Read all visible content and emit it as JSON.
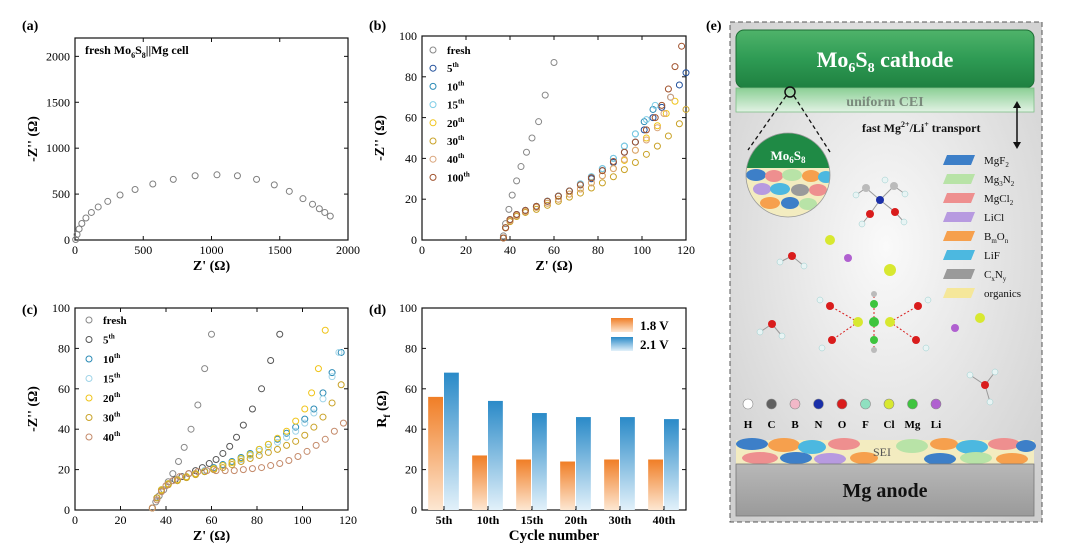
{
  "figure": {
    "panel_labels": [
      "(a)",
      "(b)",
      "(c)",
      "(d)",
      "(e)"
    ]
  },
  "chart_data": [
    {
      "id": "a",
      "type": "scatter",
      "title": "",
      "annotation": {
        "main": "fresh Mo",
        "sub1": "6",
        "mid": "S",
        "sub2": "8",
        "tail": "||Mg cell"
      },
      "xlabel": "Z' (Ω)",
      "ylabel": "-Z'' (Ω)",
      "xlim": [
        0,
        2000
      ],
      "ylim": [
        0,
        2200
      ],
      "xticks": [
        0,
        500,
        1000,
        1500,
        2000
      ],
      "yticks": [
        0,
        500,
        1000,
        1500,
        2000
      ],
      "marker_color": "#7f7f7f",
      "series": [
        {
          "name": "fresh",
          "x": [
            5,
            15,
            30,
            50,
            80,
            120,
            170,
            240,
            330,
            440,
            570,
            720,
            880,
            1040,
            1190,
            1330,
            1460,
            1570,
            1670,
            1740,
            1790,
            1830,
            1870
          ],
          "y": [
            5,
            60,
            120,
            180,
            240,
            300,
            360,
            420,
            490,
            550,
            610,
            660,
            700,
            710,
            700,
            660,
            600,
            530,
            450,
            390,
            340,
            300,
            260
          ]
        }
      ]
    },
    {
      "id": "b",
      "type": "scatter",
      "xlabel": "Z' (Ω)",
      "ylabel": "-Z'' (Ω)",
      "xlim": [
        0,
        120
      ],
      "ylim": [
        0,
        100
      ],
      "xticks": [
        0,
        20,
        40,
        60,
        80,
        100,
        120
      ],
      "yticks": [
        0,
        20,
        40,
        60,
        80,
        100
      ],
      "series": [
        {
          "name": "fresh",
          "sup": "",
          "color": "#888888",
          "x": [
            37,
            38,
            39.5,
            41,
            43,
            45,
            47.5,
            50,
            53,
            56,
            60
          ],
          "y": [
            2,
            8,
            15,
            22,
            29,
            36,
            43,
            50,
            58,
            71,
            87
          ]
        },
        {
          "name": "5",
          "sup": "th",
          "color": "#1f4e9a",
          "x": [
            37,
            38,
            40,
            43,
            47,
            52,
            57,
            62,
            67,
            72,
            77,
            82,
            87,
            92,
            97,
            101,
            105,
            109,
            113,
            117,
            120
          ],
          "y": [
            1,
            6,
            10,
            12.5,
            14.5,
            16.5,
            19,
            21.5,
            24,
            27,
            30,
            34,
            38,
            43,
            48,
            54,
            60,
            65,
            70,
            76,
            82
          ]
        },
        {
          "name": "10",
          "sup": "th",
          "color": "#2a8ab5",
          "x": [
            37,
            38,
            40,
            43,
            47,
            52,
            57,
            62,
            67,
            72,
            77,
            82,
            87,
            92,
            97,
            101,
            105
          ],
          "y": [
            1,
            6,
            10,
            12.5,
            14.5,
            16.5,
            19,
            21.5,
            24,
            27.5,
            31,
            35,
            40,
            46,
            52,
            58,
            64
          ]
        },
        {
          "name": "15",
          "sup": "th",
          "color": "#7fcde6",
          "x": [
            37,
            38,
            40,
            43,
            47,
            52,
            57,
            62,
            67,
            72,
            77,
            82,
            87,
            92,
            97,
            102,
            106
          ],
          "y": [
            1,
            6,
            10,
            12.5,
            14.5,
            16.5,
            19,
            21.5,
            24,
            27.5,
            31,
            35,
            40,
            46,
            52,
            59,
            66
          ]
        },
        {
          "name": "20",
          "sup": "th",
          "color": "#f0c419",
          "x": [
            37,
            38,
            40,
            43,
            47,
            52,
            57,
            62,
            67,
            72,
            77,
            82,
            87,
            92,
            97,
            102,
            107,
            111,
            115
          ],
          "y": [
            1,
            6,
            9.5,
            12,
            14,
            16,
            18,
            20,
            22.5,
            25,
            28,
            31.5,
            35,
            39,
            44,
            50,
            56,
            62,
            68
          ]
        },
        {
          "name": "30",
          "sup": "th",
          "color": "#c9a227",
          "x": [
            37,
            38,
            40,
            43,
            47,
            52,
            57,
            62,
            67,
            72,
            77,
            82,
            87,
            92,
            97,
            102,
            107,
            112,
            117,
            120
          ],
          "y": [
            1,
            6,
            9,
            11.5,
            13.5,
            15,
            17,
            19,
            21,
            23,
            25.5,
            28,
            31,
            34.5,
            38,
            42,
            46,
            51,
            57,
            64
          ]
        },
        {
          "name": "40",
          "sup": "th",
          "color": "#d9a47a",
          "x": [
            37,
            38,
            40,
            43,
            47,
            52,
            57,
            62,
            67,
            72,
            77,
            82,
            87,
            92,
            97,
            102,
            107,
            110,
            113
          ],
          "y": [
            1,
            6,
            9.5,
            12,
            14,
            16,
            18,
            20,
            22.5,
            25,
            28,
            31.5,
            35,
            39.5,
            44,
            49,
            55,
            62,
            70
          ]
        },
        {
          "name": "100",
          "sup": "th",
          "color": "#a0522d",
          "x": [
            37,
            38,
            40,
            43,
            47,
            52,
            57,
            62,
            67,
            72,
            77,
            82,
            87,
            92,
            97,
            102,
            106,
            109,
            112,
            115,
            118
          ],
          "y": [
            1,
            6,
            10,
            12.5,
            14.5,
            16.5,
            19,
            21.5,
            24,
            27,
            30.5,
            34,
            38.5,
            43,
            48,
            54,
            60,
            66,
            74,
            85,
            95
          ]
        }
      ]
    },
    {
      "id": "c",
      "type": "scatter",
      "xlabel": "Z' (Ω)",
      "ylabel": "-Z'' (Ω)",
      "xlim": [
        0,
        120
      ],
      "ylim": [
        0,
        100
      ],
      "xticks": [
        0,
        20,
        40,
        60,
        80,
        100,
        120
      ],
      "yticks": [
        0,
        20,
        40,
        60,
        80,
        100
      ],
      "series": [
        {
          "name": "fresh",
          "sup": "",
          "color": "#888888",
          "x": [
            34,
            35.5,
            37,
            39,
            41,
            43,
            45.5,
            48,
            51,
            54,
            57,
            60
          ],
          "y": [
            1,
            4,
            7,
            10,
            14,
            18,
            24,
            31,
            40,
            52,
            70,
            87
          ]
        },
        {
          "name": "5",
          "sup": "th",
          "color": "#555555",
          "x": [
            34,
            36,
            38,
            41,
            44,
            47,
            50,
            53,
            56,
            59,
            62,
            65,
            68,
            71,
            74,
            78,
            82,
            86,
            90
          ],
          "y": [
            1,
            6,
            10,
            13,
            15,
            16.5,
            18,
            19.5,
            21,
            23,
            25,
            28,
            31.5,
            36,
            42,
            50,
            60,
            74,
            87
          ]
        },
        {
          "name": "10",
          "sup": "th",
          "color": "#2a8ab5",
          "x": [
            34,
            36,
            38,
            41,
            45,
            49,
            53,
            57,
            61,
            65,
            69,
            73,
            77,
            81,
            85,
            89,
            93,
            97,
            101,
            105,
            109,
            113,
            117
          ],
          "y": [
            1,
            6,
            10,
            13,
            15,
            16.5,
            18,
            19.5,
            21,
            22.5,
            24,
            26,
            28,
            30,
            32.5,
            35,
            38,
            41,
            45,
            50,
            58,
            68,
            78
          ]
        },
        {
          "name": "15",
          "sup": "th",
          "color": "#9fd4e8",
          "x": [
            34,
            36,
            38,
            41,
            45,
            49,
            53,
            57,
            61,
            65,
            69,
            73,
            77,
            81,
            85,
            89,
            93,
            97,
            101,
            105,
            109,
            113,
            116
          ],
          "y": [
            1,
            6,
            10,
            13,
            15,
            16.5,
            18,
            19.5,
            20.5,
            22,
            23.5,
            25,
            27,
            29,
            31,
            33.5,
            36,
            39,
            43,
            48,
            55,
            66,
            78
          ]
        },
        {
          "name": "20",
          "sup": "th",
          "color": "#f0c419",
          "x": [
            34,
            36,
            38,
            41,
            45,
            49,
            53,
            57,
            61,
            65,
            69,
            73,
            77,
            81,
            85,
            89,
            93,
            97,
            101,
            104,
            107,
            110
          ],
          "y": [
            1,
            6,
            10,
            13,
            15,
            16.5,
            18,
            19,
            20.5,
            22,
            23.5,
            25.5,
            27.5,
            30,
            32.5,
            35.5,
            39,
            44,
            50,
            58,
            70,
            89
          ]
        },
        {
          "name": "30",
          "sup": "th",
          "color": "#c9a227",
          "x": [
            34,
            36,
            38,
            41,
            45,
            49,
            53,
            57,
            61,
            65,
            69,
            73,
            77,
            81,
            85,
            89,
            93,
            97,
            101,
            105,
            109,
            113,
            117
          ],
          "y": [
            1,
            6,
            9.5,
            12.5,
            14.5,
            16,
            17.5,
            19,
            20,
            21,
            22.5,
            24,
            25.5,
            27,
            28.5,
            30,
            32,
            34,
            37,
            41,
            46,
            53,
            62
          ]
        },
        {
          "name": "40",
          "sup": "th",
          "color": "#c48a6a",
          "x": [
            34,
            36,
            38,
            40,
            43,
            46,
            50,
            54,
            58,
            62,
            66,
            70,
            74,
            78,
            82,
            86,
            90,
            94,
            98,
            102,
            106,
            110,
            114,
            118
          ],
          "y": [
            1,
            5,
            9,
            12,
            14.5,
            16.5,
            18,
            19,
            19.5,
            19.5,
            19.5,
            19.5,
            20,
            20.5,
            21,
            22,
            23,
            24.5,
            26.5,
            29,
            32,
            35,
            39,
            43
          ]
        }
      ]
    },
    {
      "id": "d",
      "type": "bar",
      "xlabel": "Cycle number",
      "ylabel_main": "R",
      "ylabel_sub": "f",
      "ylabel_tail": " (Ω)",
      "ylim": [
        0,
        100
      ],
      "yticks": [
        0,
        20,
        40,
        60,
        80,
        100
      ],
      "categories": [
        "5th",
        "10th",
        "15th",
        "20th",
        "30th",
        "40th"
      ],
      "series": [
        {
          "name": "1.8 V",
          "color": "#f07e26",
          "values": [
            56,
            27,
            25,
            24,
            25,
            25
          ]
        },
        {
          "name": "2.1 V",
          "color": "#2a8ac8",
          "values": [
            68,
            54,
            48,
            46,
            46,
            45
          ]
        }
      ]
    }
  ],
  "schematic": {
    "cathode": {
      "main": "Mo",
      "sub1": "6",
      "mid": "S",
      "sub2": "8",
      "tail": " cathode"
    },
    "cei_label": "uniform CEI",
    "transport": {
      "pre": "fast Mg",
      "sup": "2+",
      "post": "/Li",
      "sup2": "+",
      "tail": " transport"
    },
    "zoom_circle": {
      "main": "Mo",
      "sub1": "6",
      "mid": "S",
      "sub2": "8"
    },
    "legend": [
      {
        "main": "MgF",
        "sub": "2",
        "color": "#3d7fc8"
      },
      {
        "main": "Mg",
        "sub": "3",
        "mid": "N",
        "sub2": "2",
        "color": "#b8e3a7"
      },
      {
        "main": "MgCl",
        "sub": "2",
        "color": "#ee8f8f"
      },
      {
        "main": "LiCl",
        "sub": "",
        "color": "#b79ae0"
      },
      {
        "main": "B",
        "sub": "m",
        "mid": "O",
        "sub2": "n",
        "color": "#f6a04d"
      },
      {
        "main": "LiF",
        "sub": "",
        "color": "#4cb8e0"
      },
      {
        "main": "C",
        "sub": "x",
        "mid": "N",
        "sub2": "y",
        "color": "#9a9a9a"
      },
      {
        "main": "organics",
        "sub": "",
        "color": "#f5e79a"
      }
    ],
    "atoms": [
      {
        "symbol": "H",
        "color": "#ffffff"
      },
      {
        "symbol": "C",
        "color": "#606060"
      },
      {
        "symbol": "B",
        "color": "#f2b8c8"
      },
      {
        "symbol": "N",
        "color": "#1a2fa8"
      },
      {
        "symbol": "O",
        "color": "#d91c1c"
      },
      {
        "symbol": "F",
        "color": "#8fe0c0"
      },
      {
        "symbol": "Cl",
        "color": "#d8e830"
      },
      {
        "symbol": "Mg",
        "color": "#3ec43e"
      },
      {
        "symbol": "Li",
        "color": "#b060d0"
      }
    ],
    "sei_label": "SEI",
    "anode_label": "Mg anode"
  }
}
